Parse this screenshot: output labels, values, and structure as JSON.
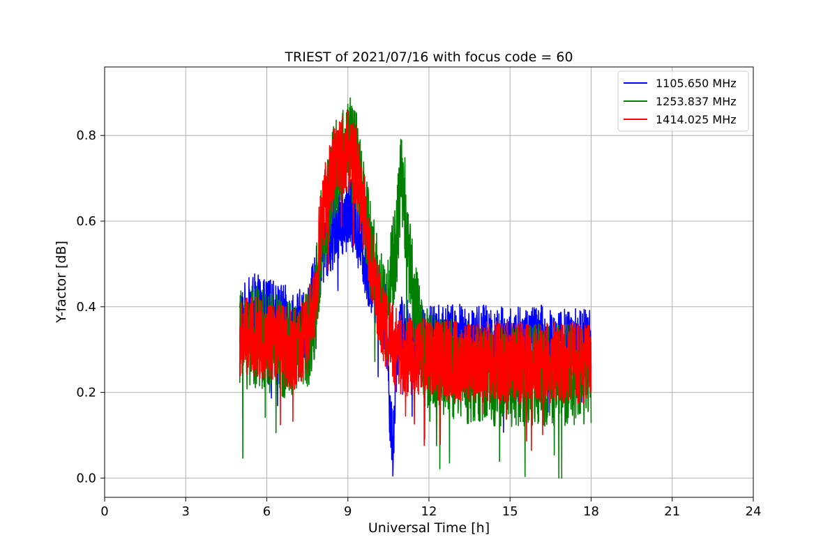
{
  "chart_data": {
    "type": "line",
    "title": "TRIEST of 2021/07/16 with focus code = 60",
    "xlabel": "Universal Time [h]",
    "ylabel": "Y-factor [dB]",
    "xlim": [
      0,
      24
    ],
    "ylim": [
      -0.045,
      0.96
    ],
    "xticks": [
      0,
      3,
      6,
      9,
      12,
      15,
      18,
      21,
      24
    ],
    "yticks": [
      0.0,
      0.2,
      0.4,
      0.6,
      0.8
    ],
    "ytick_labels": [
      "0.0",
      "0.2",
      "0.4",
      "0.6",
      "0.8"
    ],
    "grid": true,
    "legend_position": "top-right",
    "noise_note": "dense noisy series; anchor points give the underlying envelope",
    "series": [
      {
        "name": "1105.650 MHz",
        "color": "#0000ff",
        "x": [
          5.0,
          5.5,
          6.0,
          6.5,
          7.0,
          7.5,
          7.8,
          8.0,
          8.5,
          9.0,
          9.3,
          9.6,
          10.0,
          10.4,
          10.65,
          10.8,
          11.0,
          11.5,
          12.0,
          13.0,
          14.0,
          15.0,
          16.0,
          17.0,
          18.0
        ],
        "y": [
          0.36,
          0.39,
          0.38,
          0.37,
          0.35,
          0.36,
          0.44,
          0.52,
          0.58,
          0.62,
          0.6,
          0.52,
          0.44,
          0.38,
          0.05,
          0.3,
          0.34,
          0.33,
          0.32,
          0.32,
          0.32,
          0.31,
          0.32,
          0.31,
          0.31
        ],
        "amplitude": 0.055
      },
      {
        "name": "1253.837 MHz",
        "color": "#008000",
        "x": [
          5.0,
          5.5,
          6.0,
          6.5,
          7.0,
          7.5,
          7.8,
          8.0,
          8.5,
          9.0,
          9.3,
          9.6,
          10.0,
          10.4,
          10.8,
          11.0,
          11.3,
          11.6,
          12.0,
          13.0,
          14.0,
          15.0,
          16.0,
          17.0,
          18.0
        ],
        "y": [
          0.32,
          0.33,
          0.32,
          0.31,
          0.3,
          0.32,
          0.4,
          0.55,
          0.72,
          0.78,
          0.74,
          0.64,
          0.48,
          0.38,
          0.55,
          0.72,
          0.5,
          0.35,
          0.27,
          0.25,
          0.24,
          0.24,
          0.24,
          0.24,
          0.24
        ],
        "amplitude": 0.075
      },
      {
        "name": "1414.025 MHz",
        "color": "#ff0000",
        "x": [
          5.0,
          5.5,
          6.0,
          6.5,
          7.0,
          7.5,
          7.8,
          8.0,
          8.5,
          9.0,
          9.3,
          9.6,
          10.0,
          10.4,
          10.8,
          11.0,
          11.5,
          12.0,
          13.0,
          14.0,
          15.0,
          16.0,
          17.0,
          18.0
        ],
        "y": [
          0.32,
          0.33,
          0.32,
          0.31,
          0.3,
          0.33,
          0.42,
          0.6,
          0.73,
          0.77,
          0.73,
          0.62,
          0.45,
          0.34,
          0.3,
          0.29,
          0.28,
          0.28,
          0.27,
          0.27,
          0.27,
          0.27,
          0.27,
          0.27
        ],
        "amplitude": 0.06
      }
    ]
  }
}
